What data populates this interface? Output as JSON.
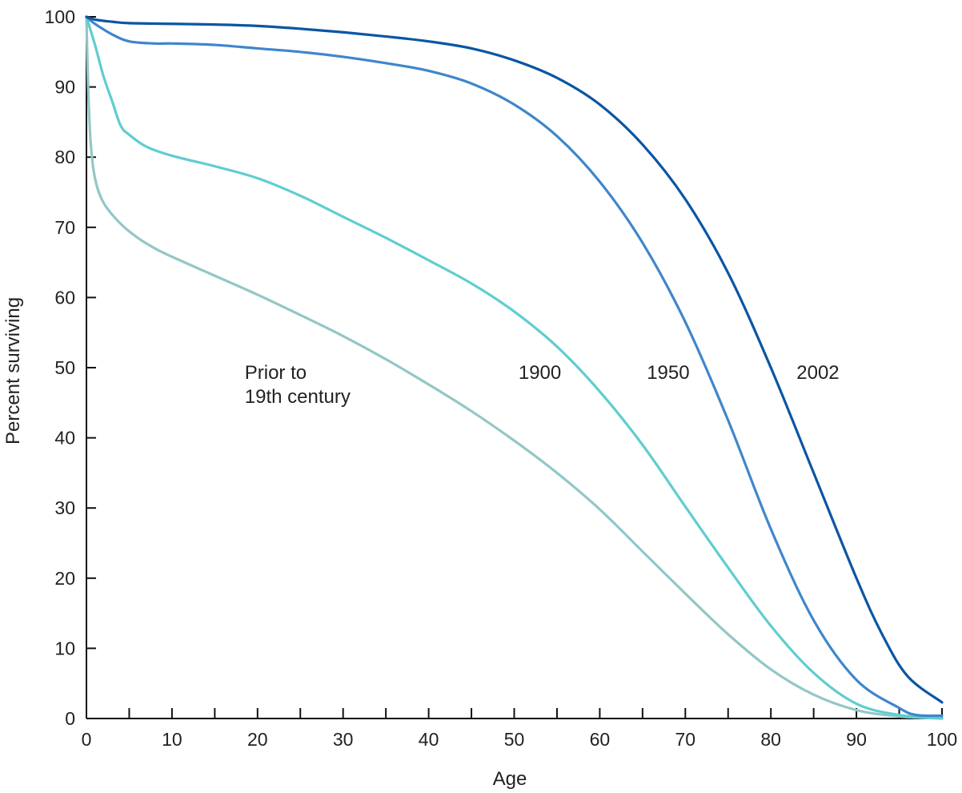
{
  "chart_data": {
    "type": "line",
    "title": "",
    "xlabel": "Age",
    "ylabel": "Percent surviving",
    "xlim": [
      0,
      100
    ],
    "ylim": [
      0,
      100
    ],
    "xticks": [
      0,
      10,
      20,
      30,
      40,
      50,
      60,
      70,
      80,
      90,
      100
    ],
    "xticks_minor": [
      5,
      15,
      25,
      35,
      45,
      55,
      65,
      75,
      85,
      95
    ],
    "yticks": [
      0,
      10,
      20,
      30,
      40,
      50,
      60,
      70,
      80,
      90,
      100
    ],
    "grid": false,
    "series": [
      {
        "name": "Prior to 19th century",
        "label_lines": [
          "Prior to",
          "19th century"
        ],
        "label_at": [
          18.5,
          50
        ],
        "color": "#93c7c6",
        "points": [
          [
            0,
            100
          ],
          [
            0.2,
            90
          ],
          [
            0.5,
            82
          ],
          [
            1,
            77
          ],
          [
            2,
            73.5
          ],
          [
            4,
            70.5
          ],
          [
            6,
            68.5
          ],
          [
            8,
            67
          ],
          [
            10,
            65.8
          ],
          [
            15,
            63.1
          ],
          [
            20,
            60.4
          ],
          [
            25,
            57.5
          ],
          [
            30,
            54.5
          ],
          [
            35,
            51.2
          ],
          [
            40,
            47.6
          ],
          [
            45,
            43.8
          ],
          [
            50,
            39.6
          ],
          [
            55,
            35
          ],
          [
            60,
            29.8
          ],
          [
            65,
            23.8
          ],
          [
            70,
            17.8
          ],
          [
            75,
            12
          ],
          [
            80,
            7
          ],
          [
            85,
            3.4
          ],
          [
            90,
            1.2
          ],
          [
            95,
            0.3
          ],
          [
            100,
            0
          ]
        ]
      },
      {
        "name": "1900",
        "label_lines": [
          "1900"
        ],
        "label_at": [
          50.5,
          50
        ],
        "color": "#5fcdd0",
        "points": [
          [
            0,
            100
          ],
          [
            1,
            96
          ],
          [
            2,
            91.5
          ],
          [
            3,
            88
          ],
          [
            4,
            84.5
          ],
          [
            5,
            83.2
          ],
          [
            7,
            81.5
          ],
          [
            10,
            80.2
          ],
          [
            15,
            78.7
          ],
          [
            20,
            77
          ],
          [
            25,
            74.5
          ],
          [
            30,
            71.5
          ],
          [
            35,
            68.5
          ],
          [
            40,
            65.3
          ],
          [
            45,
            62
          ],
          [
            50,
            58
          ],
          [
            55,
            53
          ],
          [
            60,
            46.6
          ],
          [
            65,
            39
          ],
          [
            70,
            30.2
          ],
          [
            75,
            21.5
          ],
          [
            80,
            13.2
          ],
          [
            85,
            6.5
          ],
          [
            90,
            2.1
          ],
          [
            95,
            0.5
          ],
          [
            100,
            0
          ]
        ]
      },
      {
        "name": "1950",
        "label_lines": [
          "1950"
        ],
        "label_at": [
          65.5,
          50
        ],
        "color": "#3f86cb",
        "points": [
          [
            0,
            100
          ],
          [
            1,
            99
          ],
          [
            3,
            97.5
          ],
          [
            5,
            96.5
          ],
          [
            8,
            96.2
          ],
          [
            10,
            96.2
          ],
          [
            15,
            96
          ],
          [
            20,
            95.5
          ],
          [
            25,
            95
          ],
          [
            30,
            94.3
          ],
          [
            35,
            93.4
          ],
          [
            40,
            92.3
          ],
          [
            45,
            90.5
          ],
          [
            50,
            87.5
          ],
          [
            55,
            83
          ],
          [
            60,
            76.5
          ],
          [
            65,
            67.8
          ],
          [
            70,
            56.5
          ],
          [
            75,
            42.5
          ],
          [
            80,
            27
          ],
          [
            85,
            14
          ],
          [
            90,
            5.5
          ],
          [
            95,
            1.5
          ],
          [
            97,
            0.5
          ],
          [
            100,
            0.4
          ]
        ]
      },
      {
        "name": "2002",
        "label_lines": [
          "2002"
        ],
        "label_at": [
          83,
          50
        ],
        "color": "#0a56a3",
        "points": [
          [
            0,
            100
          ],
          [
            1,
            99.6
          ],
          [
            3,
            99.3
          ],
          [
            5,
            99.1
          ],
          [
            10,
            99
          ],
          [
            15,
            98.9
          ],
          [
            20,
            98.7
          ],
          [
            25,
            98.3
          ],
          [
            30,
            97.8
          ],
          [
            35,
            97.2
          ],
          [
            40,
            96.5
          ],
          [
            45,
            95.5
          ],
          [
            50,
            93.8
          ],
          [
            55,
            91.3
          ],
          [
            60,
            87.5
          ],
          [
            65,
            81.8
          ],
          [
            70,
            74
          ],
          [
            75,
            63.5
          ],
          [
            80,
            50
          ],
          [
            85,
            35
          ],
          [
            90,
            20
          ],
          [
            93,
            12
          ],
          [
            96,
            6
          ],
          [
            100,
            2.3
          ]
        ]
      }
    ]
  }
}
